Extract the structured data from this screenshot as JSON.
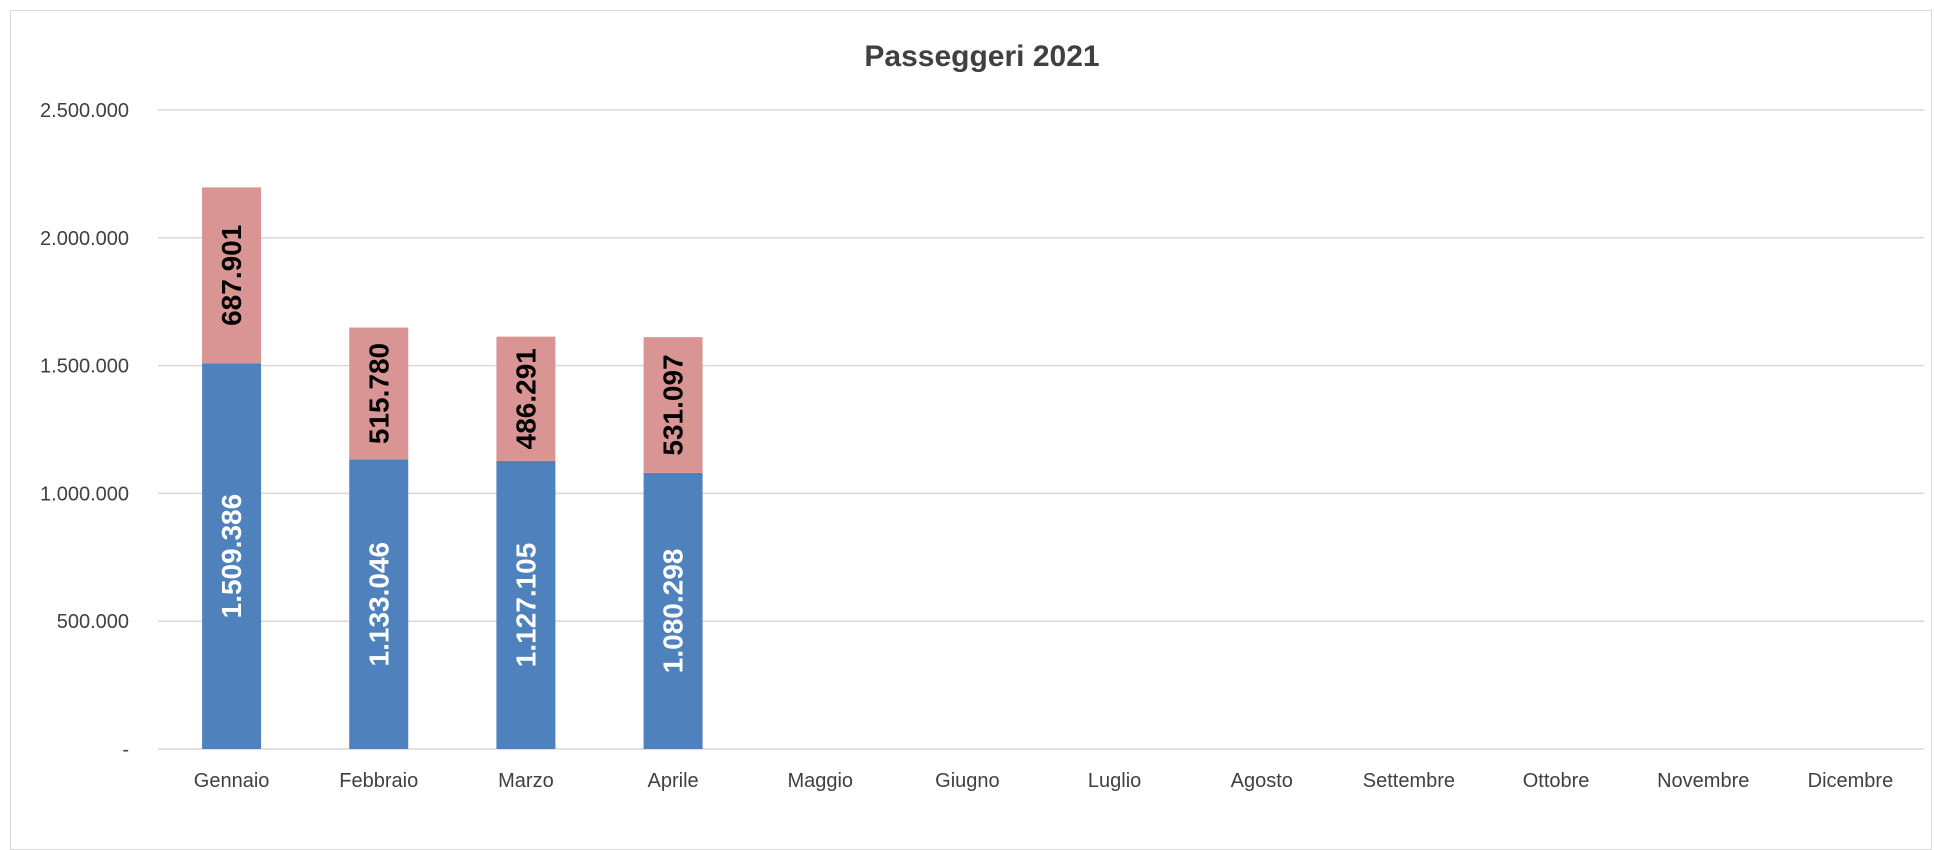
{
  "chart_data": {
    "type": "bar",
    "stacked": true,
    "title": "Passeggeri 2021",
    "categories": [
      "Gennaio",
      "Febbraio",
      "Marzo",
      "Aprile",
      "Maggio",
      "Giugno",
      "Luglio",
      "Agosto",
      "Settembre",
      "Ottobre",
      "Novembre",
      "Dicembre"
    ],
    "series": [
      {
        "values": [
          1509386,
          1133046,
          1127105,
          1080298,
          null,
          null,
          null,
          null,
          null,
          null,
          null,
          null
        ],
        "labels": [
          "1.509.386",
          "1.133.046",
          "1.127.105",
          "1.080.298"
        ],
        "color": "#4f81bd",
        "label_color": "#ffffff"
      },
      {
        "values": [
          687901,
          515780,
          486291,
          531097,
          null,
          null,
          null,
          null,
          null,
          null,
          null,
          null
        ],
        "labels": [
          "687.901",
          "515.780",
          "486.291",
          "531.097"
        ],
        "color": "#d99594",
        "label_color": "#000000"
      }
    ],
    "ylim": [
      0,
      2500000
    ],
    "yticks": [
      0,
      500000,
      1000000,
      1500000,
      2000000,
      2500000
    ],
    "ytick_labels": [
      "-",
      "500.000",
      "1.000.000",
      "1.500.000",
      "2.000.000",
      "2.500.000"
    ],
    "grid": true,
    "legend": "none"
  }
}
